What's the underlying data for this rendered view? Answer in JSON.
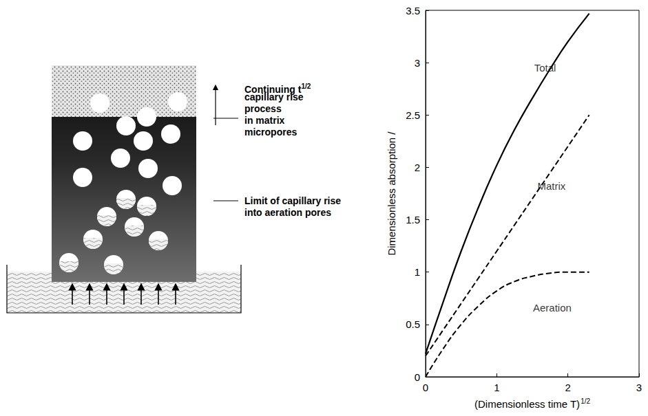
{
  "diagram": {
    "labels": [
      {
        "lines": [
          {
            "text": "Continuing t",
            "sup": "1/2"
          },
          "capillary rise",
          "process",
          "in matrix",
          "micropores"
        ]
      },
      {
        "lines": [
          "Limit of capillary rise",
          "into aeration pores"
        ]
      }
    ]
  },
  "chart_data": {
    "type": "line",
    "x_label": {
      "text": "(Dimensionless time T)",
      "sup": "1/2"
    },
    "y_label": "Dimensionless absorption /",
    "xlim": [
      0,
      3
    ],
    "xticks": [
      0,
      1,
      2,
      3
    ],
    "ylim": [
      0,
      3.5
    ],
    "yticks": [
      0,
      0.5,
      1,
      1.5,
      2,
      2.5,
      3,
      3.5
    ],
    "grid": false,
    "x": [
      0,
      0.25,
      0.5,
      0.75,
      1,
      1.25,
      1.5,
      1.75,
      2,
      2.3
    ],
    "series": [
      {
        "name": "Total",
        "color": "#000000",
        "line_style": "solid",
        "label_at": [
          1.68,
          2.95
        ],
        "values": [
          0.22,
          0.72,
          1.2,
          1.63,
          2.02,
          2.36,
          2.66,
          2.94,
          3.2,
          3.47
        ]
      },
      {
        "name": "Matrix",
        "color": "#000000",
        "line_style": "dashed",
        "label_at": [
          1.77,
          1.82
        ],
        "values": [
          0.2,
          0.45,
          0.7,
          0.95,
          1.2,
          1.45,
          1.7,
          1.95,
          2.2,
          2.5
        ]
      },
      {
        "name": "Aeration",
        "color": "#000000",
        "line_style": "dashed",
        "label_at": [
          1.78,
          0.66
        ],
        "values": [
          0,
          0.27,
          0.5,
          0.68,
          0.82,
          0.91,
          0.96,
          0.99,
          1.0,
          1.0
        ]
      }
    ]
  }
}
